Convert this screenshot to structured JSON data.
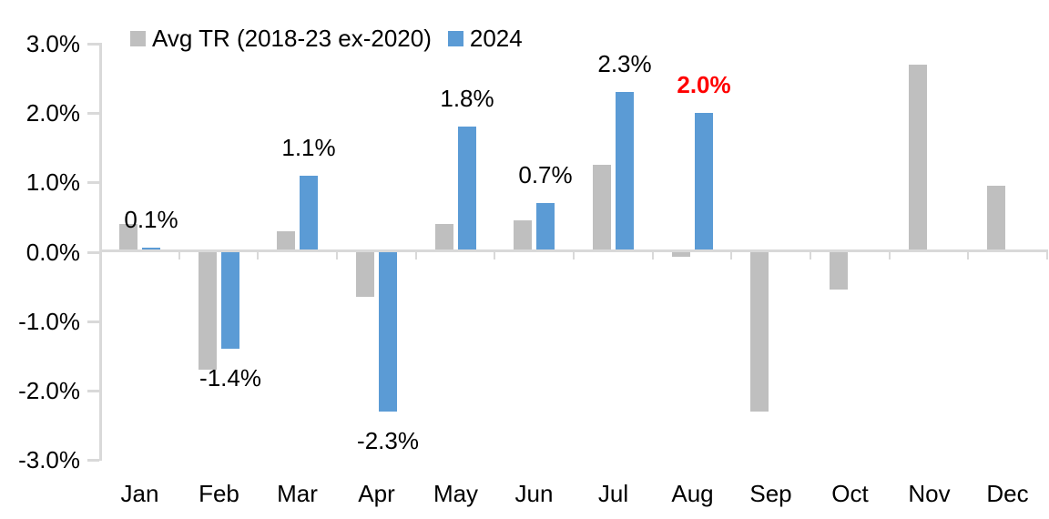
{
  "chart_data": {
    "type": "bar",
    "title": "",
    "xlabel": "",
    "ylabel": "",
    "categories": [
      "Jan",
      "Feb",
      "Mar",
      "Apr",
      "May",
      "Jun",
      "Jul",
      "Aug",
      "Sep",
      "Oct",
      "Nov",
      "Dec"
    ],
    "series": [
      {
        "name": "Avg TR (2018-23 ex-2020)",
        "color": "#BFBFBF",
        "values": [
          0.4,
          -1.7,
          0.3,
          -0.65,
          0.4,
          0.45,
          1.25,
          -0.07,
          -2.3,
          -0.55,
          2.7,
          0.95
        ]
      },
      {
        "name": "2024",
        "color": "#5B9BD5",
        "values": [
          0.06,
          -1.4,
          1.1,
          -2.3,
          1.8,
          0.7,
          2.3,
          2.0,
          null,
          null,
          null,
          null
        ],
        "data_labels": [
          "0.1%",
          "-1.4%",
          "1.1%",
          "-2.3%",
          "1.8%",
          "0.7%",
          "2.3%",
          "2.0%",
          null,
          null,
          null,
          null
        ],
        "data_label_colors": [
          "#000000",
          "#000000",
          "#000000",
          "#000000",
          "#000000",
          "#000000",
          "#000000",
          "#FF0000",
          null,
          null,
          null,
          null
        ],
        "data_label_bold": [
          false,
          false,
          false,
          false,
          false,
          false,
          false,
          true,
          false,
          false,
          false,
          false
        ]
      }
    ],
    "ylim": [
      -3,
      3
    ],
    "ytick_step": 1,
    "ytick_labels": [
      "3.0%",
      "2.0%",
      "1.0%",
      "0.0%",
      "-1.0%",
      "-2.0%",
      "-3.0%"
    ],
    "grid": false,
    "legend_position": "top",
    "colors": {
      "axis": "#D9D9D9",
      "background": "#FFFFFF",
      "text": "#000000",
      "highlight": "#FF0000"
    }
  }
}
